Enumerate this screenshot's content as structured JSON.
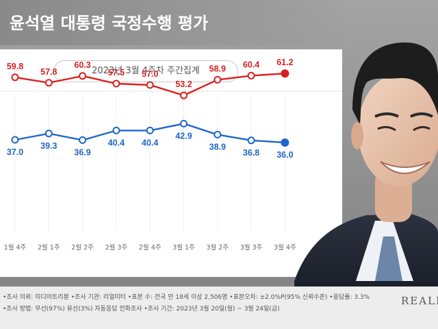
{
  "header": {
    "title": "윤석열 대통령 국정수행 평가"
  },
  "subtitle": "2023년 3월 4주차 주간집계",
  "chart_data": {
    "type": "line",
    "categories": [
      "1월 4주",
      "2월 1주",
      "2월 2주",
      "2월 3주",
      "2월 4주",
      "3월 1주",
      "3월 2주",
      "3월 3주",
      "3월 4주"
    ],
    "series": [
      {
        "color": "#d92121",
        "values": [
          59.8,
          57.8,
          60.3,
          57.5,
          57.0,
          53.2,
          58.9,
          60.4,
          61.2
        ]
      },
      {
        "color": "#1f66c9",
        "values": [
          37.0,
          39.3,
          36.9,
          40.4,
          40.4,
          42.9,
          38.9,
          36.8,
          36.0
        ]
      }
    ]
  },
  "footer": {
    "line1": "•조사 의뢰: 미디어트리뷴  •조사 기관: 리얼미터  •표본 수: 전국 만 18세 이상 2,506명  •표본오차: ±2.0%P(95% 신뢰수준)  •응답률: 3.3%",
    "line2": "•조사 방법: 무선(97%) 유선(3%) 자동응답 전화조사  •조사 기간: 2023년 3월 20일(월) ~ 3월 24일(금)",
    "logo": "REALMETER"
  }
}
